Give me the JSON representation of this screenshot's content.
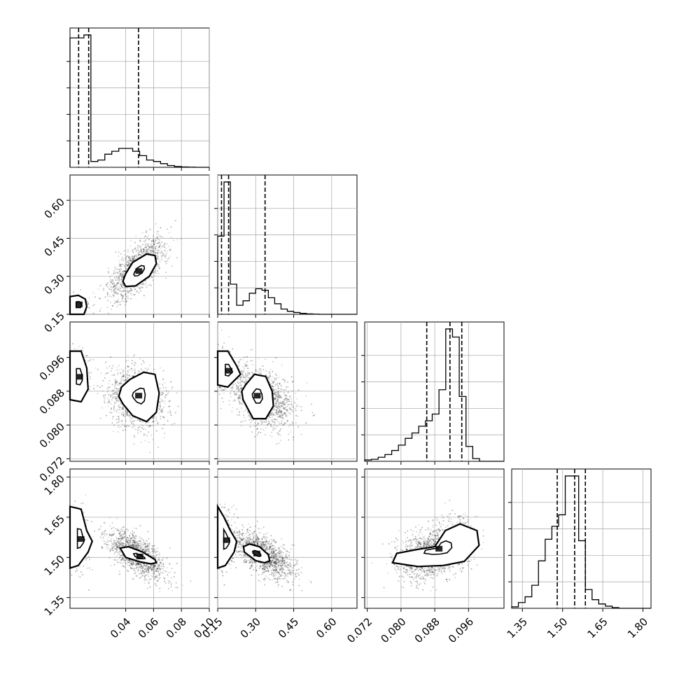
{
  "chart_data": {
    "type": "corner",
    "parameters": [
      {
        "range": [
          0.0,
          0.1
        ],
        "ticks": [
          0.04,
          0.06,
          0.08,
          0.1
        ],
        "tick_labels": [
          "0.04",
          "0.06",
          "0.08",
          "0.10"
        ],
        "quantiles": [
          0.0062,
          0.0134,
          0.0492
        ],
        "hist": {
          "edges": [
            0.0,
            0.005,
            0.01,
            0.015,
            0.02,
            0.025,
            0.03,
            0.035,
            0.04,
            0.045,
            0.05,
            0.055,
            0.06,
            0.065,
            0.07,
            0.075,
            0.08,
            0.085,
            0.09,
            0.095,
            0.1
          ],
          "counts": [
            0.89,
            0.89,
            0.91,
            0.04,
            0.05,
            0.09,
            0.11,
            0.13,
            0.13,
            0.11,
            0.08,
            0.05,
            0.04,
            0.025,
            0.012,
            0.005,
            0.002,
            0.001,
            0,
            0
          ]
        }
      },
      {
        "range": [
          0.15,
          0.7
        ],
        "ticks": [
          0.15,
          0.3,
          0.45,
          0.6
        ],
        "tick_labels": [
          "0.15",
          "0.30",
          "0.45",
          "0.60"
        ],
        "quantiles": [
          0.165,
          0.193,
          0.337
        ],
        "hist": {
          "edges": [
            0.15,
            0.175,
            0.2,
            0.225,
            0.25,
            0.275,
            0.3,
            0.325,
            0.35,
            0.375,
            0.4,
            0.425,
            0.45,
            0.475,
            0.5,
            0.525,
            0.55,
            0.575,
            0.6,
            0.625,
            0.65,
            0.675,
            0.7
          ],
          "counts": [
            0.52,
            0.88,
            0.2,
            0.06,
            0.09,
            0.14,
            0.17,
            0.16,
            0.11,
            0.07,
            0.035,
            0.02,
            0.012,
            0.006,
            0.003,
            0.001,
            0,
            0,
            0,
            0,
            0,
            0
          ]
        }
      },
      {
        "range": [
          0.0714,
          0.1044
        ],
        "ticks": [
          0.072,
          0.08,
          0.088,
          0.096
        ],
        "tick_labels": [
          "0.072",
          "0.080",
          "0.088",
          "0.096"
        ],
        "quantiles": [
          0.0861,
          0.0916,
          0.0944
        ],
        "hist": {
          "edges": [
            0.0714,
            0.073,
            0.0746,
            0.0762,
            0.0778,
            0.0794,
            0.081,
            0.0826,
            0.0842,
            0.0858,
            0.0874,
            0.089,
            0.0906,
            0.0922,
            0.0938,
            0.0954,
            0.097,
            0.0986,
            0.1002,
            0.1018,
            0.1044
          ],
          "counts": [
            0.01,
            0.015,
            0.03,
            0.05,
            0.08,
            0.12,
            0.17,
            0.21,
            0.26,
            0.3,
            0.35,
            0.53,
            0.98,
            0.92,
            0.48,
            0.11,
            0.02,
            0,
            0,
            0
          ]
        }
      },
      {
        "range": [
          1.31,
          1.83
        ],
        "ticks": [
          1.35,
          1.5,
          1.65,
          1.8
        ],
        "tick_labels": [
          "1.35",
          "1.50",
          "1.65",
          "1.80"
        ],
        "quantiles": [
          1.48,
          1.545,
          1.585
        ],
        "hist": {
          "edges": [
            1.31,
            1.335,
            1.36,
            1.385,
            1.41,
            1.435,
            1.46,
            1.485,
            1.51,
            1.535,
            1.56,
            1.585,
            1.61,
            1.635,
            1.66,
            1.685,
            1.71,
            1.735,
            1.76,
            1.785,
            1.83
          ],
          "counts": [
            0.01,
            0.04,
            0.08,
            0.16,
            0.33,
            0.48,
            0.57,
            0.65,
            0.92,
            0.92,
            0.47,
            0.13,
            0.06,
            0.03,
            0.015,
            0.005,
            0,
            0,
            0,
            0
          ]
        }
      }
    ],
    "contours": [
      {
        "row": 1,
        "col": 0,
        "x": [
          0.04,
          0.047,
          0.057,
          0.062,
          0.061,
          0.055,
          0.045,
          0.04,
          0.038
        ],
        "y": [
          0.26,
          0.262,
          0.3,
          0.35,
          0.382,
          0.388,
          0.355,
          0.31,
          0.28
        ]
      },
      {
        "row": 1,
        "col": 0,
        "x": [
          0.0,
          0.01,
          0.012,
          0.011,
          0.006,
          0.0
        ],
        "y": [
          0.15,
          0.15,
          0.18,
          0.21,
          0.225,
          0.22
        ]
      },
      {
        "row": 2,
        "col": 0,
        "x": [
          0.038,
          0.045,
          0.055,
          0.062,
          0.064,
          0.061,
          0.053,
          0.043,
          0.037,
          0.035
        ],
        "y": [
          0.085,
          0.0822,
          0.0808,
          0.083,
          0.0875,
          0.092,
          0.0925,
          0.0908,
          0.089,
          0.0868
        ]
      },
      {
        "row": 2,
        "col": 0,
        "x": [
          0.0,
          0.008,
          0.013,
          0.012,
          0.008,
          0.0
        ],
        "y": [
          0.086,
          0.0855,
          0.0885,
          0.0935,
          0.0975,
          0.0975
        ]
      },
      {
        "row": 2,
        "col": 1,
        "x": [
          0.25,
          0.29,
          0.34,
          0.37,
          0.365,
          0.34,
          0.295,
          0.26,
          0.245
        ],
        "y": [
          0.086,
          0.0815,
          0.0815,
          0.0845,
          0.088,
          0.0915,
          0.092,
          0.0895,
          0.088
        ]
      },
      {
        "row": 2,
        "col": 1,
        "x": [
          0.15,
          0.19,
          0.215,
          0.24,
          0.225,
          0.19,
          0.15
        ],
        "y": [
          0.0895,
          0.089,
          0.0905,
          0.092,
          0.094,
          0.0975,
          0.0975
        ]
      },
      {
        "row": 3,
        "col": 0,
        "x": [
          0.04,
          0.05,
          0.058,
          0.062,
          0.061,
          0.052,
          0.042,
          0.036
        ],
        "y": [
          1.5,
          1.484,
          1.476,
          1.48,
          1.492,
          1.52,
          1.54,
          1.535
        ]
      },
      {
        "row": 3,
        "col": 0,
        "x": [
          0.0,
          0.006,
          0.013,
          0.016,
          0.012,
          0.008,
          0.0
        ],
        "y": [
          1.46,
          1.47,
          1.52,
          1.56,
          1.6,
          1.68,
          1.69
        ]
      },
      {
        "row": 3,
        "col": 1,
        "x": [
          0.255,
          0.3,
          0.335,
          0.355,
          0.35,
          0.315,
          0.275,
          0.252
        ],
        "y": [
          1.52,
          1.488,
          1.48,
          1.487,
          1.51,
          1.54,
          1.55,
          1.54
        ]
      },
      {
        "row": 3,
        "col": 1,
        "x": [
          0.15,
          0.18,
          0.215,
          0.225,
          0.2,
          0.175,
          0.15
        ],
        "y": [
          1.46,
          1.47,
          1.52,
          1.56,
          1.6,
          1.65,
          1.69
        ]
      },
      {
        "row": 3,
        "col": 2,
        "x": [
          0.078,
          0.084,
          0.09,
          0.095,
          0.0985,
          0.098,
          0.094,
          0.0905,
          0.088,
          0.084,
          0.079
        ],
        "y": [
          1.48,
          1.466,
          1.47,
          1.485,
          1.545,
          1.6,
          1.625,
          1.6,
          1.54,
          1.53,
          1.515
        ]
      }
    ],
    "xlabel": "",
    "ylabel": "",
    "grid": true
  }
}
